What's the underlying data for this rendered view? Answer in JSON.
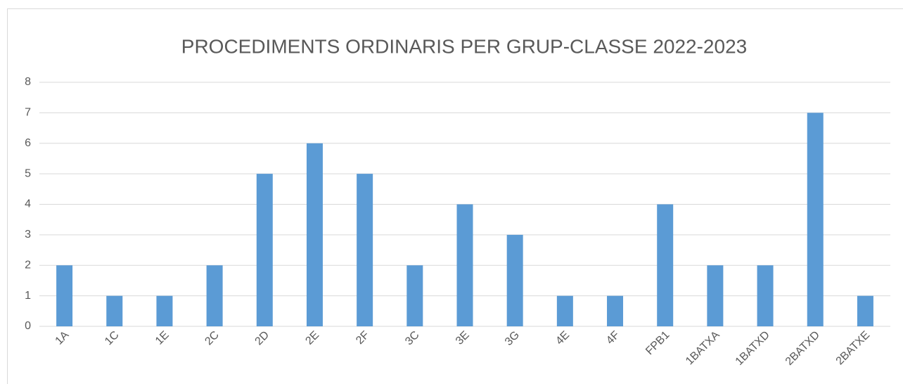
{
  "chart_data": {
    "type": "bar",
    "title": "PROCEDIMENTS ORDINARIS PER GRUP-CLASSE 2022-2023",
    "categories": [
      "1A",
      "1C",
      "1E",
      "2C",
      "2D",
      "2E",
      "2F",
      "3C",
      "3E",
      "3G",
      "4E",
      "4F",
      "FPB1",
      "1BATXA",
      "1BATXD",
      "2BATXD",
      "2BATXE"
    ],
    "values": [
      2,
      1,
      1,
      2,
      5,
      6,
      5,
      2,
      4,
      3,
      1,
      1,
      4,
      2,
      2,
      7,
      1
    ],
    "color": "#5b9bd5",
    "ylim": [
      0,
      8
    ],
    "yticks": [
      0,
      1,
      2,
      3,
      4,
      5,
      6,
      7,
      8
    ],
    "grid": true
  }
}
